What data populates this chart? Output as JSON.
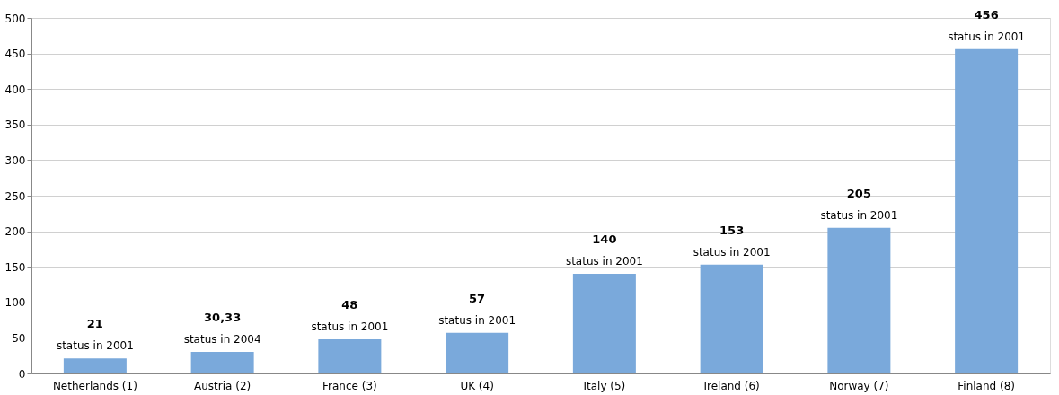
{
  "chart_data": {
    "type": "bar",
    "categories": [
      "Netherlands (1)",
      "Austria (2)",
      "France (3)",
      "UK (4)",
      "Italy (5)",
      "Ireland (6)",
      "Norway (7)",
      "Finland (8)"
    ],
    "values": [
      21,
      30.33,
      48,
      57,
      140,
      153,
      205,
      456
    ],
    "value_labels": [
      "21",
      "30,33",
      "48",
      "57",
      "140",
      "153",
      "205",
      "456"
    ],
    "color": "#7aa9db",
    "ylim": [
      0,
      500
    ],
    "yticks": [
      0,
      50,
      100,
      150,
      200,
      250,
      300,
      350,
      400,
      450,
      500
    ],
    "grid": "y",
    "annotations": [
      {
        "text": "status in 2001",
        "x": "Netherlands (1)",
        "y": 21
      },
      {
        "text": "status in 2004",
        "x": "Austria (2)",
        "y": 30.33
      },
      {
        "text": "status in 2001",
        "x": "France (3)",
        "y": 48
      },
      {
        "text": "status in 2001",
        "x": "UK (4)",
        "y": 57
      },
      {
        "text": "status in 2001",
        "x": "Italy (5)",
        "y": 140
      },
      {
        "text": "status in 2001",
        "x": "Ireland (6)",
        "y": 153
      },
      {
        "text": "status in 2001",
        "x": "Norway (7)",
        "y": 205
      },
      {
        "text": "status in 2001",
        "x": "Finland (8)",
        "y": 456
      }
    ]
  }
}
